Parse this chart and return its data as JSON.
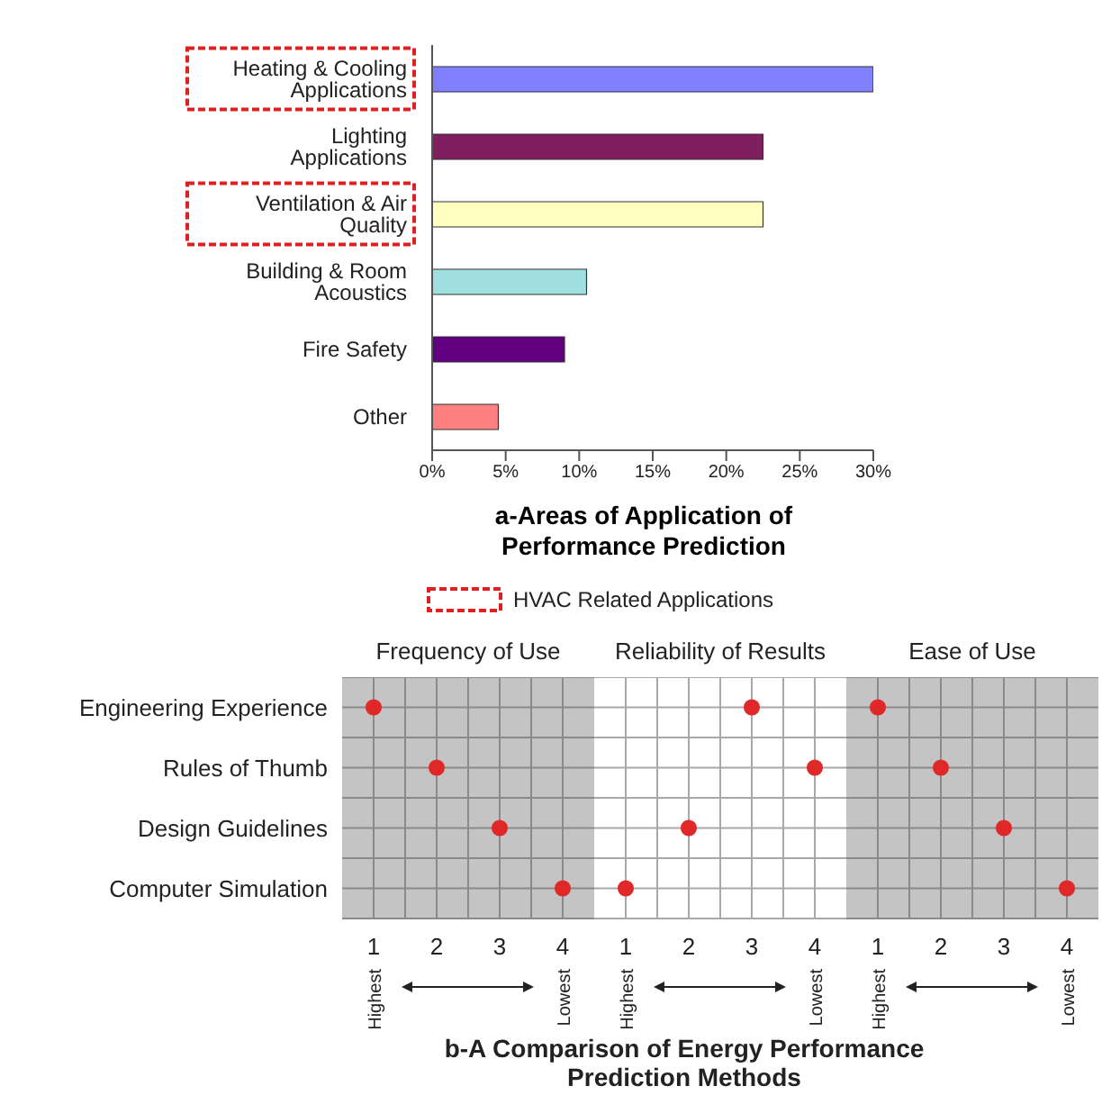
{
  "chart_data": [
    {
      "type": "bar",
      "orientation": "horizontal",
      "title": "a-Areas of Application of Performance Prediction",
      "categories": [
        "Heating & Cooling Applications",
        "Lighting Applications",
        "Ventilation & Air Quality",
        "Building & Room Acoustics",
        "Fire Safety",
        "Other"
      ],
      "values": [
        30,
        22.5,
        22.5,
        10.5,
        9,
        4.5
      ],
      "colors": [
        "#8080ff",
        "#801f60",
        "#ffffc0",
        "#a0e0e0",
        "#600080",
        "#ff8080"
      ],
      "xlim": [
        0,
        30
      ],
      "xticks": [
        {
          "value": 0,
          "label": "0%"
        },
        {
          "value": 5,
          "label": "5%"
        },
        {
          "value": 10,
          "label": "10%"
        },
        {
          "value": 15,
          "label": "15%"
        },
        {
          "value": 20,
          "label": "20%"
        },
        {
          "value": 25,
          "label": "25%"
        },
        {
          "value": 30,
          "label": "30%"
        }
      ],
      "annotations": [
        "HVAC Related Applications"
      ]
    },
    {
      "type": "scatter",
      "orientation": "horizontal",
      "title": "Frequency of Use",
      "categories": [
        "Engineering Experience",
        "Rules of Thumb",
        "Design Guidelines",
        "Computer Simulation"
      ],
      "series": [
        {
          "color": "#e02828",
          "values": [
            1,
            2,
            3,
            4
          ]
        }
      ],
      "marker": "circle",
      "grid": true,
      "xlim": [
        0.5,
        4.5
      ],
      "xticks": [
        1,
        {
          "value": 1.5,
          "label": null
        },
        2,
        {
          "value": 2.5,
          "label": null
        },
        3,
        {
          "value": 3.5,
          "label": null
        },
        4
      ],
      "annotations": [
        "Highest",
        "Lowest"
      ]
    },
    {
      "type": "scatter",
      "orientation": "horizontal",
      "title": "Reliability of Results",
      "categories": [
        null,
        null,
        null,
        null
      ],
      "series": [
        {
          "color": "#e02828",
          "values": [
            3,
            4,
            2,
            1
          ]
        }
      ],
      "marker": "circle",
      "grid": true,
      "xlim": [
        0.5,
        4.5
      ],
      "tick_labels": "x",
      "xticks": [
        1,
        {
          "value": 1.5,
          "label": null
        },
        2,
        {
          "value": 2.5,
          "label": null
        },
        3,
        {
          "value": 3.5,
          "label": null
        },
        4
      ],
      "annotations": [
        "Highest",
        "Lowest",
        "b-A Comparison of Energy Performance Prediction Methods"
      ]
    },
    {
      "type": "scatter",
      "orientation": "horizontal",
      "title": "Ease of Use",
      "categories": [
        null,
        null,
        null,
        null
      ],
      "series": [
        {
          "color": "#e02828",
          "values": [
            1,
            2,
            3,
            4
          ]
        }
      ],
      "marker": "circle",
      "grid": true,
      "xlim": [
        0.5,
        4.5
      ],
      "tick_labels": "x",
      "xticks": [
        1,
        {
          "value": 1.5,
          "label": null
        },
        2,
        {
          "value": 2.5,
          "label": null
        },
        3,
        {
          "value": 3.5,
          "label": null
        },
        4
      ],
      "annotations": [
        "Highest",
        "Lowest"
      ]
    }
  ]
}
